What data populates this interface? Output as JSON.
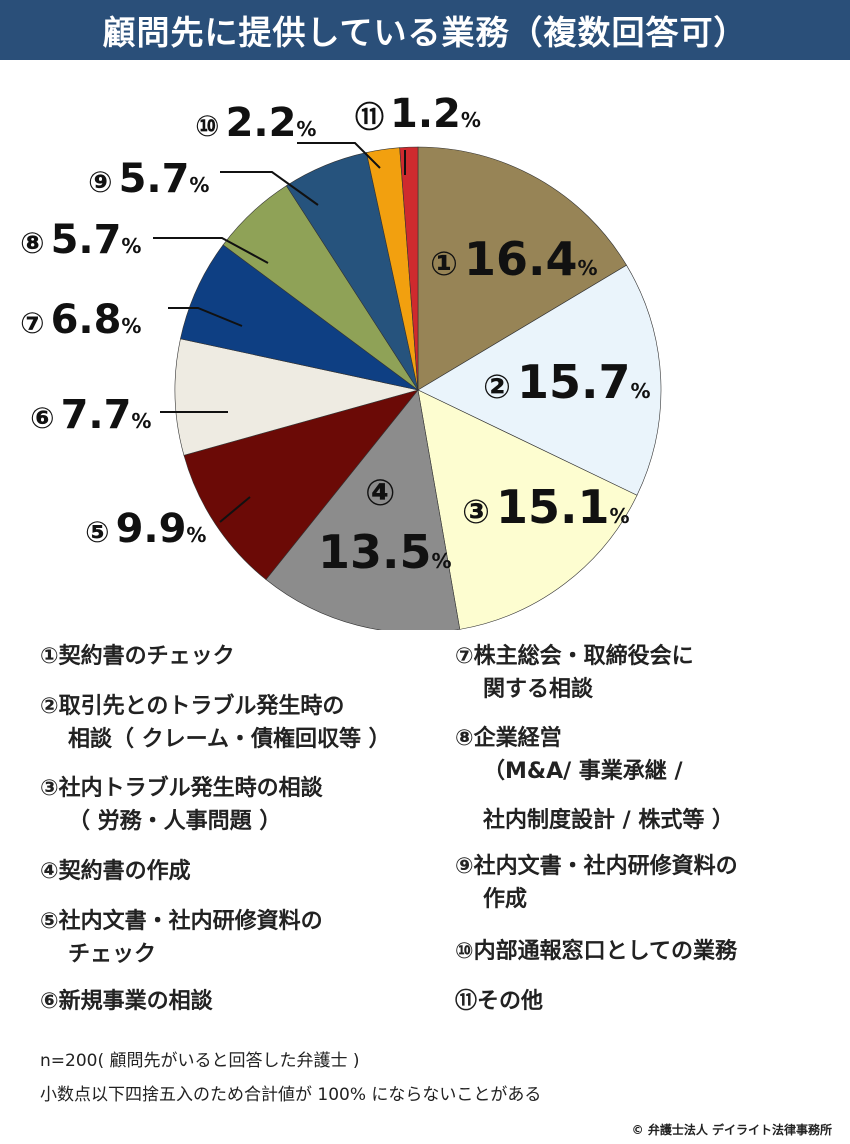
{
  "header": {
    "title": "顧問先に提供している業務（複数回答可）"
  },
  "chart_data": {
    "type": "pie",
    "title": "顧問先に提供している業務（複数回答可）",
    "unit": "%",
    "slices": [
      {
        "mark": "①",
        "value": 16.4,
        "label": "16.4",
        "color": "#978456"
      },
      {
        "mark": "②",
        "value": 15.7,
        "label": "15.7",
        "color": "#eaf4fb"
      },
      {
        "mark": "③",
        "value": 15.1,
        "label": "15.1",
        "color": "#fdfdd0"
      },
      {
        "mark": "④",
        "value": 13.5,
        "label": "13.5",
        "color": "#8c8c8c"
      },
      {
        "mark": "⑤",
        "value": 9.9,
        "label": "9.9",
        "color": "#6b0a06"
      },
      {
        "mark": "⑥",
        "value": 7.7,
        "label": "7.7",
        "color": "#eeebe2"
      },
      {
        "mark": "⑦",
        "value": 6.8,
        "label": "6.8",
        "color": "#0e3f83"
      },
      {
        "mark": "⑧",
        "value": 5.7,
        "label": "5.7",
        "color": "#8fa257"
      },
      {
        "mark": "⑨",
        "value": 5.7,
        "label": "5.7",
        "color": "#26537d"
      },
      {
        "mark": "⑩",
        "value": 2.2,
        "label": "2.2",
        "color": "#f2a00f"
      },
      {
        "mark": "⑪",
        "value": 1.2,
        "label": "1.2",
        "color": "#cf2a2e"
      }
    ]
  },
  "legend": {
    "left": [
      {
        "line1": "①契約書のチェック",
        "line2": ""
      },
      {
        "line1": "②取引先とのトラブル発生時の",
        "line2": "相談（ クレーム・債権回収等 ）"
      },
      {
        "line1": "③社内トラブル発生時の相談",
        "line2": "（ 労務・人事問題 ）"
      },
      {
        "line1": "④契約書の作成",
        "line2": ""
      },
      {
        "line1": "⑤社内文書・社内研修資料の",
        "line2": "チェック"
      },
      {
        "line1": "⑥新規事業の相談",
        "line2": ""
      }
    ],
    "right": [
      {
        "line1": "⑦株主総会・取締役会に",
        "line2": "関する相談"
      },
      {
        "line1": "⑧企業経営",
        "line2": "（M&A/ 事業承継 /"
      },
      {
        "line1": "",
        "line2": "社内制度設計 / 株式等 ）"
      },
      {
        "line1": "⑨社内文書・社内研修資料の",
        "line2": "作成"
      },
      {
        "line1": "⑩内部通報窓口としての業務",
        "line2": ""
      },
      {
        "line1": "⑪その他",
        "line2": ""
      }
    ]
  },
  "notes": {
    "sample": "n=200( 顧問先がいると回答した弁護士 )",
    "rounding": "小数点以下四捨五入のため合計値が 100% にならないことがある"
  },
  "credit": "© 弁護士法人 デイライト法律事務所"
}
